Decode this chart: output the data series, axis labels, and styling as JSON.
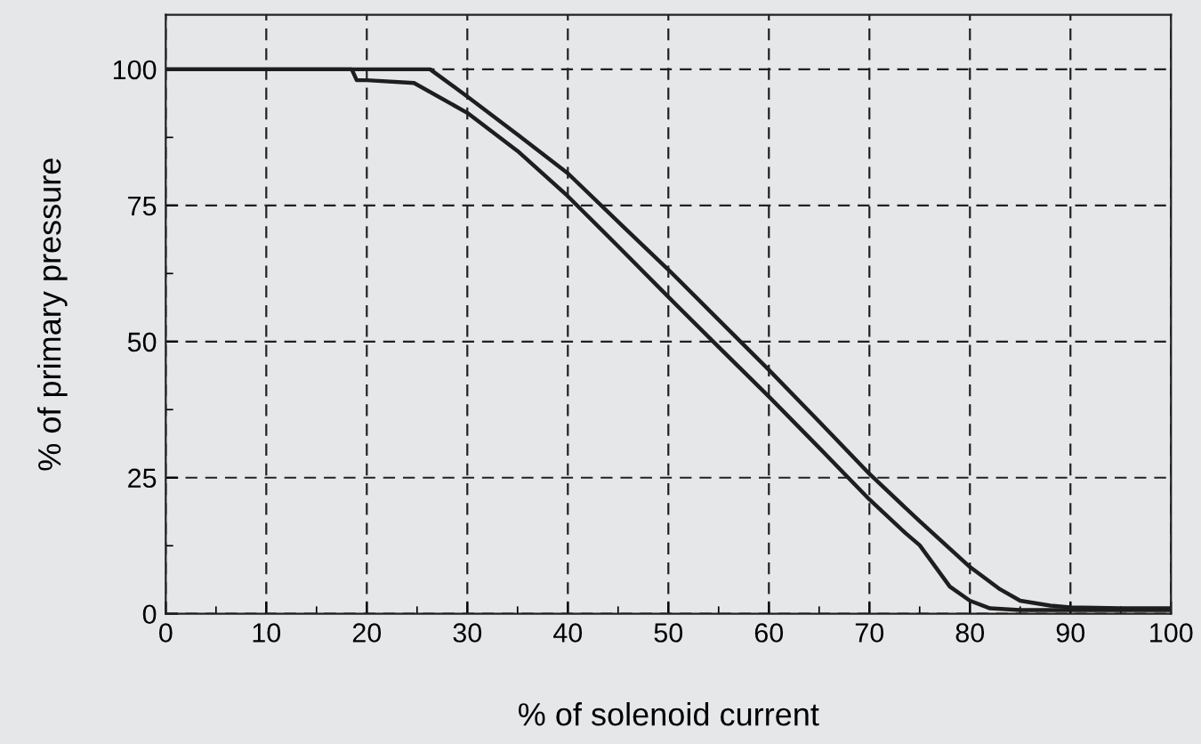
{
  "chart_data": {
    "type": "line",
    "xlabel": "% of solenoid current",
    "ylabel": "% of primary pressure",
    "xlim": [
      0,
      100
    ],
    "ylim": [
      0,
      110
    ],
    "xticks": [
      0,
      10,
      20,
      30,
      40,
      50,
      60,
      70,
      80,
      90,
      100
    ],
    "yticks": [
      0,
      25,
      50,
      75,
      100
    ],
    "grid": true,
    "marker": "none",
    "line_style": "solid",
    "series": [
      {
        "color": "#1e1e1e",
        "x": [
          0,
          10,
          20,
          26.3,
          30,
          35,
          40,
          45,
          50,
          55,
          60,
          65,
          70,
          75,
          80,
          83,
          85,
          88,
          90,
          95,
          100
        ],
        "values": [
          100,
          100,
          100,
          100,
          95,
          88,
          80.9,
          72,
          63.2,
          54,
          44.8,
          35.3,
          25.7,
          17,
          8.6,
          4.5,
          2.4,
          1.5,
          1.2,
          1,
          1
        ]
      },
      {
        "color": "#1e1e1e",
        "x": [
          0,
          10,
          18.5,
          19,
          20,
          24.7,
          30,
          35,
          40,
          45,
          50,
          55,
          60,
          65,
          70,
          73.6,
          75,
          78,
          80,
          82,
          85,
          90,
          100
        ],
        "values": [
          100,
          100,
          100,
          98,
          98,
          97.5,
          92,
          85,
          76.7,
          67.5,
          58.2,
          49,
          39.9,
          30.5,
          21,
          14.8,
          12.6,
          5,
          2.4,
          1,
          0.7,
          0.7,
          0.7
        ]
      }
    ]
  }
}
